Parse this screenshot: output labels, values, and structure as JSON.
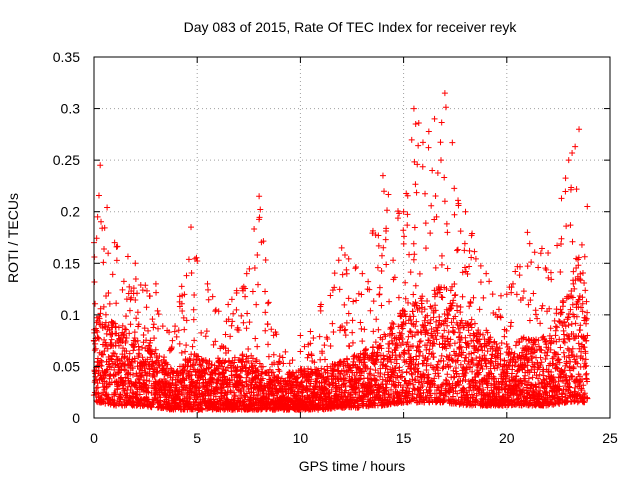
{
  "chart_data": {
    "type": "scatter",
    "title": "Day 083 of 2015, Rate Of TEC Index for receiver reyk",
    "xlabel": "GPS time / hours",
    "ylabel": "ROTI / TECUs",
    "xlim": [
      0,
      25
    ],
    "ylim": [
      0,
      0.35
    ],
    "x_ticks": [
      "0",
      "5",
      "10",
      "15",
      "20",
      "25"
    ],
    "y_ticks": [
      "0",
      "0.05",
      "0.1",
      "0.15",
      "0.2",
      "0.25",
      "0.3",
      "0.35"
    ],
    "grid": true,
    "marker": "+",
    "series_color": "#ff0000",
    "x_extent": [
      0,
      23.9
    ],
    "envelope": [
      {
        "x": 0.0,
        "low": 0.015,
        "typ": 0.06,
        "high": 0.17
      },
      {
        "x": 0.3,
        "low": 0.015,
        "typ": 0.07,
        "high": 0.245
      },
      {
        "x": 1.0,
        "low": 0.012,
        "typ": 0.06,
        "high": 0.17
      },
      {
        "x": 2.0,
        "low": 0.012,
        "typ": 0.05,
        "high": 0.15
      },
      {
        "x": 3.0,
        "low": 0.01,
        "typ": 0.04,
        "high": 0.13
      },
      {
        "x": 3.8,
        "low": 0.008,
        "typ": 0.03,
        "high": 0.075
      },
      {
        "x": 4.7,
        "low": 0.008,
        "typ": 0.04,
        "high": 0.185
      },
      {
        "x": 5.5,
        "low": 0.008,
        "typ": 0.035,
        "high": 0.13
      },
      {
        "x": 6.5,
        "low": 0.008,
        "typ": 0.035,
        "high": 0.11
      },
      {
        "x": 7.4,
        "low": 0.008,
        "typ": 0.04,
        "high": 0.14
      },
      {
        "x": 8.0,
        "low": 0.008,
        "typ": 0.035,
        "high": 0.215
      },
      {
        "x": 9.0,
        "low": 0.008,
        "typ": 0.025,
        "high": 0.06
      },
      {
        "x": 10.0,
        "low": 0.008,
        "typ": 0.03,
        "high": 0.08
      },
      {
        "x": 11.0,
        "low": 0.008,
        "typ": 0.03,
        "high": 0.11
      },
      {
        "x": 12.0,
        "low": 0.01,
        "typ": 0.035,
        "high": 0.165
      },
      {
        "x": 13.0,
        "low": 0.01,
        "typ": 0.04,
        "high": 0.14
      },
      {
        "x": 14.0,
        "low": 0.012,
        "typ": 0.05,
        "high": 0.235
      },
      {
        "x": 15.0,
        "low": 0.015,
        "typ": 0.07,
        "high": 0.2
      },
      {
        "x": 15.5,
        "low": 0.015,
        "typ": 0.07,
        "high": 0.3
      },
      {
        "x": 16.5,
        "low": 0.015,
        "typ": 0.08,
        "high": 0.29
      },
      {
        "x": 17.0,
        "low": 0.015,
        "typ": 0.08,
        "high": 0.315
      },
      {
        "x": 18.0,
        "low": 0.012,
        "typ": 0.06,
        "high": 0.2
      },
      {
        "x": 19.0,
        "low": 0.012,
        "typ": 0.05,
        "high": 0.14
      },
      {
        "x": 20.0,
        "low": 0.012,
        "typ": 0.045,
        "high": 0.12
      },
      {
        "x": 21.0,
        "low": 0.012,
        "typ": 0.05,
        "high": 0.18
      },
      {
        "x": 22.0,
        "low": 0.012,
        "typ": 0.05,
        "high": 0.16
      },
      {
        "x": 23.0,
        "low": 0.015,
        "typ": 0.08,
        "high": 0.25
      },
      {
        "x": 23.5,
        "low": 0.015,
        "typ": 0.1,
        "high": 0.28
      },
      {
        "x": 23.9,
        "low": 0.015,
        "typ": 0.08,
        "high": 0.205
      }
    ]
  }
}
